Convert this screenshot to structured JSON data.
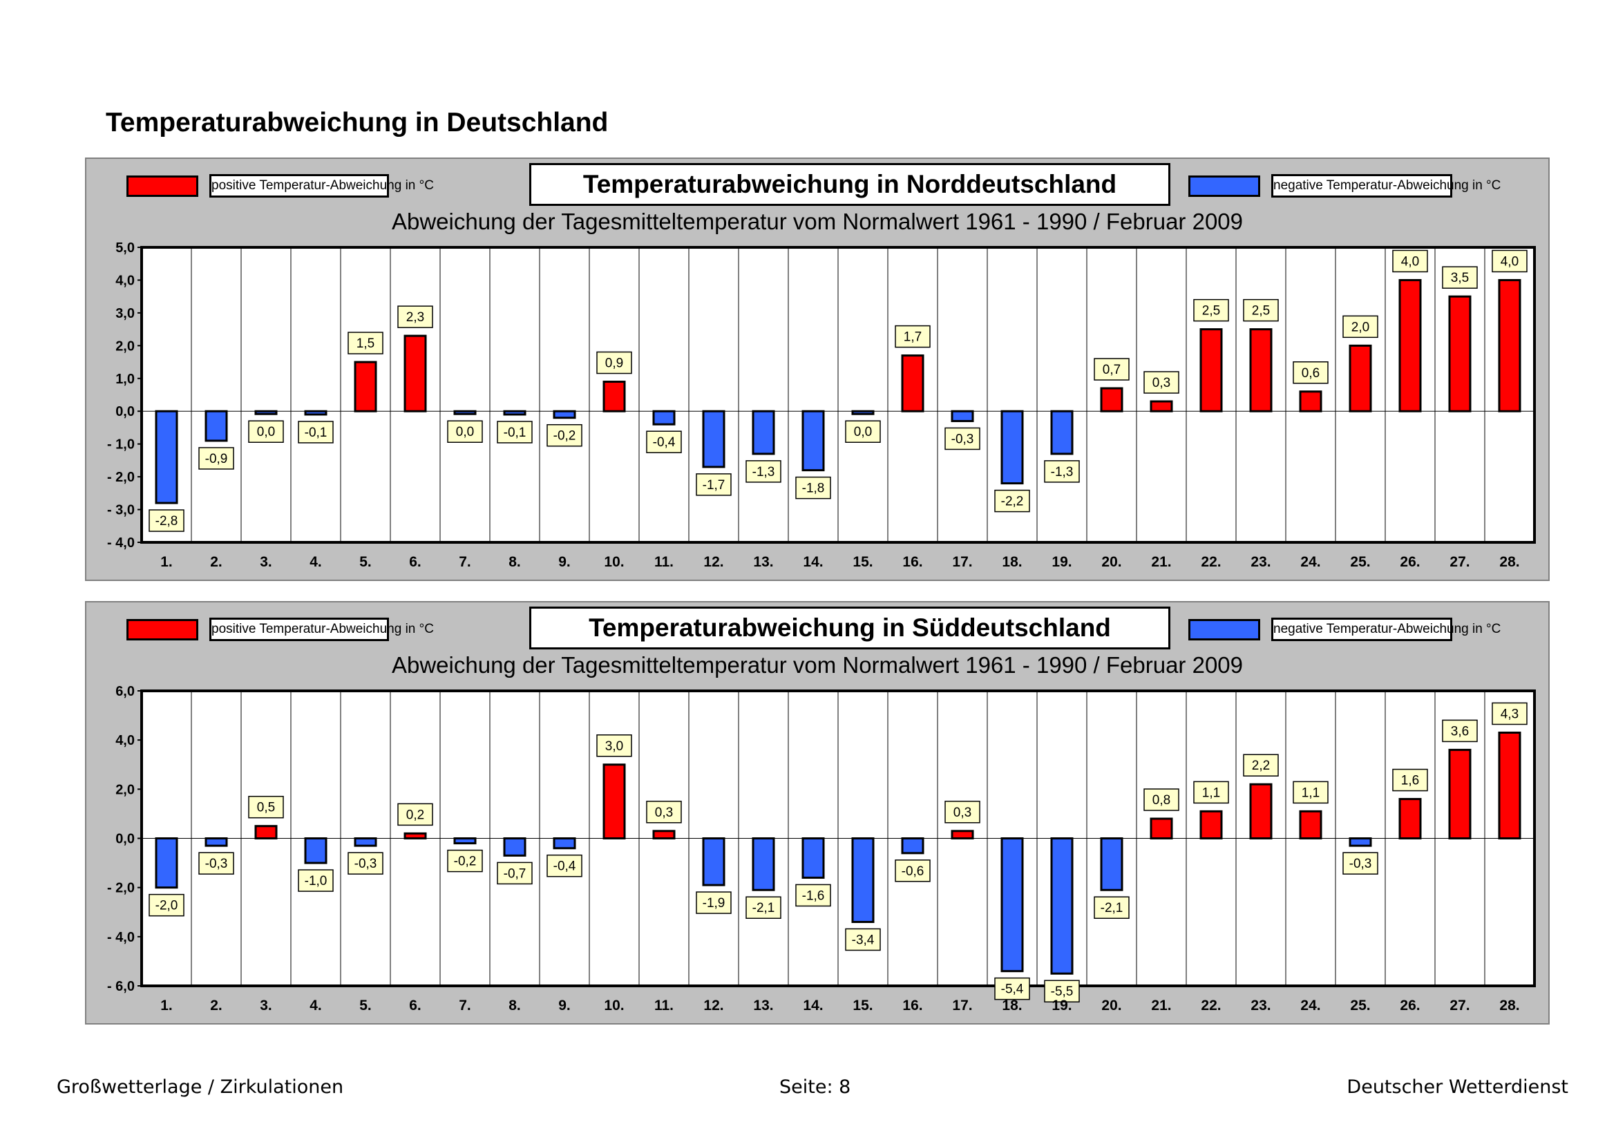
{
  "page_title": "Temperaturabweichung in Deutschland",
  "footer": {
    "left": "Großwetterlage / Zirkulationen",
    "center": "Seite: 8",
    "right": "Deutscher Wetterdienst"
  },
  "colors": {
    "positive": "#ff0000",
    "negative": "#3366ff",
    "label_bg": "#ffffcc",
    "panel": "#c0c0c0"
  },
  "chart_data": [
    {
      "type": "bar",
      "title": "Temperaturabweichung in Norddeutschland",
      "subtitle": "Abweichung der Tagesmitteltemperatur vom Normalwert 1961 - 1990  /  Februar 2009",
      "legend_positive": "positive Temperatur-Abweichung in °C",
      "legend_negative": "negative Temperatur-Abweichung in °C",
      "xlabel": "",
      "ylabel": "",
      "ylim": [
        -4,
        5
      ],
      "yticks": [
        5,
        4,
        3,
        2,
        1,
        0,
        -1,
        -2,
        -3,
        -4
      ],
      "ytick_labels": [
        "5,0",
        "4,0",
        "3,0",
        "2,0",
        "1,0",
        "0,0",
        "- 1,0",
        "- 2,0",
        "- 3,0",
        "- 4,0"
      ],
      "categories": [
        "1.",
        "2.",
        "3.",
        "4.",
        "5.",
        "6.",
        "7.",
        "8.",
        "9.",
        "10.",
        "11.",
        "12.",
        "13.",
        "14.",
        "15.",
        "16.",
        "17.",
        "18.",
        "19.",
        "20.",
        "21.",
        "22.",
        "23.",
        "24.",
        "25.",
        "26.",
        "27.",
        "28."
      ],
      "values": [
        -2.8,
        -0.9,
        0.0,
        -0.1,
        1.5,
        2.3,
        0.0,
        -0.1,
        -0.2,
        0.9,
        -0.4,
        -1.7,
        -1.3,
        -1.8,
        0.0,
        1.7,
        -0.3,
        -2.2,
        -1.3,
        0.7,
        0.3,
        2.5,
        2.5,
        0.6,
        2.0,
        4.0,
        3.5,
        4.0
      ],
      "value_labels": [
        "-2,8",
        "-0,9",
        "0,0",
        "-0,1",
        "1,5",
        "2,3",
        "0,0",
        "-0,1",
        "-0,2",
        "0,9",
        "-0,4",
        "-1,7",
        "-1,3",
        "-1,8",
        "0,0",
        "1,7",
        "-0,3",
        "-2,2",
        "-1,3",
        "0,7",
        "0,3",
        "2,5",
        "2,5",
        "0,6",
        "2,0",
        "4,0",
        "3,5",
        "4,0"
      ]
    },
    {
      "type": "bar",
      "title": "Temperaturabweichung in Süddeutschland",
      "subtitle": "Abweichung der Tagesmitteltemperatur vom Normalwert 1961 - 1990  /  Februar 2009",
      "legend_positive": "positive Temperatur-Abweichung in °C",
      "legend_negative": "negative Temperatur-Abweichung in °C",
      "xlabel": "",
      "ylabel": "",
      "ylim": [
        -6,
        6
      ],
      "yticks": [
        6,
        4,
        2,
        0,
        -2,
        -4,
        -6
      ],
      "ytick_labels": [
        "6,0",
        "4,0",
        "2,0",
        "0,0",
        "- 2,0",
        "- 4,0",
        "- 6,0"
      ],
      "categories": [
        "1.",
        "2.",
        "3.",
        "4.",
        "5.",
        "6.",
        "7.",
        "8.",
        "9.",
        "10.",
        "11.",
        "12.",
        "13.",
        "14.",
        "15.",
        "16.",
        "17.",
        "18.",
        "19.",
        "20.",
        "21.",
        "22.",
        "23.",
        "24.",
        "25.",
        "26.",
        "27.",
        "28."
      ],
      "values": [
        -2.0,
        -0.3,
        0.5,
        -1.0,
        -0.3,
        0.2,
        -0.2,
        -0.7,
        -0.4,
        3.0,
        0.3,
        -1.9,
        -2.1,
        -1.6,
        -3.4,
        -0.6,
        0.3,
        -5.4,
        -5.5,
        -2.1,
        0.8,
        1.1,
        2.2,
        1.1,
        -0.3,
        1.6,
        3.6,
        4.3
      ],
      "value_labels": [
        "-2,0",
        "-0,3",
        "0,5",
        "-1,0",
        "-0,3",
        "0,2",
        "-0,2",
        "-0,7",
        "-0,4",
        "3,0",
        "0,3",
        "-1,9",
        "-2,1",
        "-1,6",
        "-3,4",
        "-0,6",
        "0,3",
        "-5,4",
        "-5,5",
        "-2,1",
        "0,8",
        "1,1",
        "2,2",
        "1,1",
        "-0,3",
        "1,6",
        "3,6",
        "4,3"
      ]
    }
  ]
}
